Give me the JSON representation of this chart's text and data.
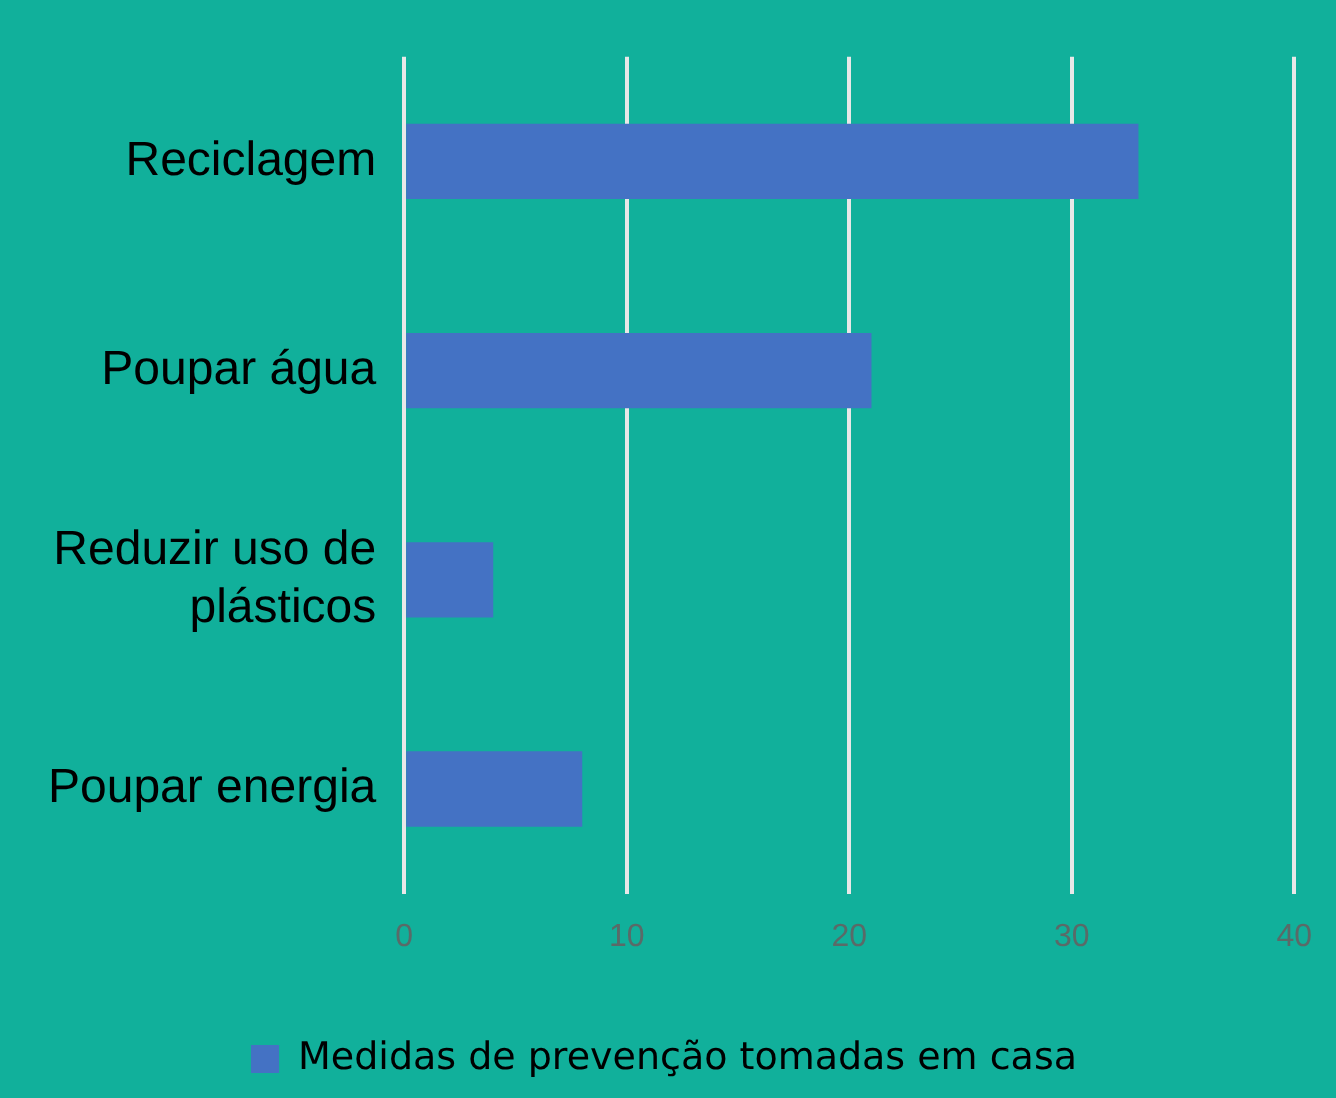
{
  "chart_data": {
    "type": "bar",
    "orientation": "horizontal",
    "categories": [
      "Reciclagem",
      "Poupar água",
      "Reduzir uso de plásticos",
      "Poupar energia"
    ],
    "series": [
      {
        "name": "Medidas de prevenção tomadas em casa",
        "color": "#4472c4",
        "values": [
          33,
          21,
          4,
          8
        ]
      }
    ],
    "xlim": [
      0,
      40
    ],
    "xticks": [
      0,
      10,
      20,
      30,
      40
    ],
    "grid": "x",
    "legend": "bottom"
  }
}
